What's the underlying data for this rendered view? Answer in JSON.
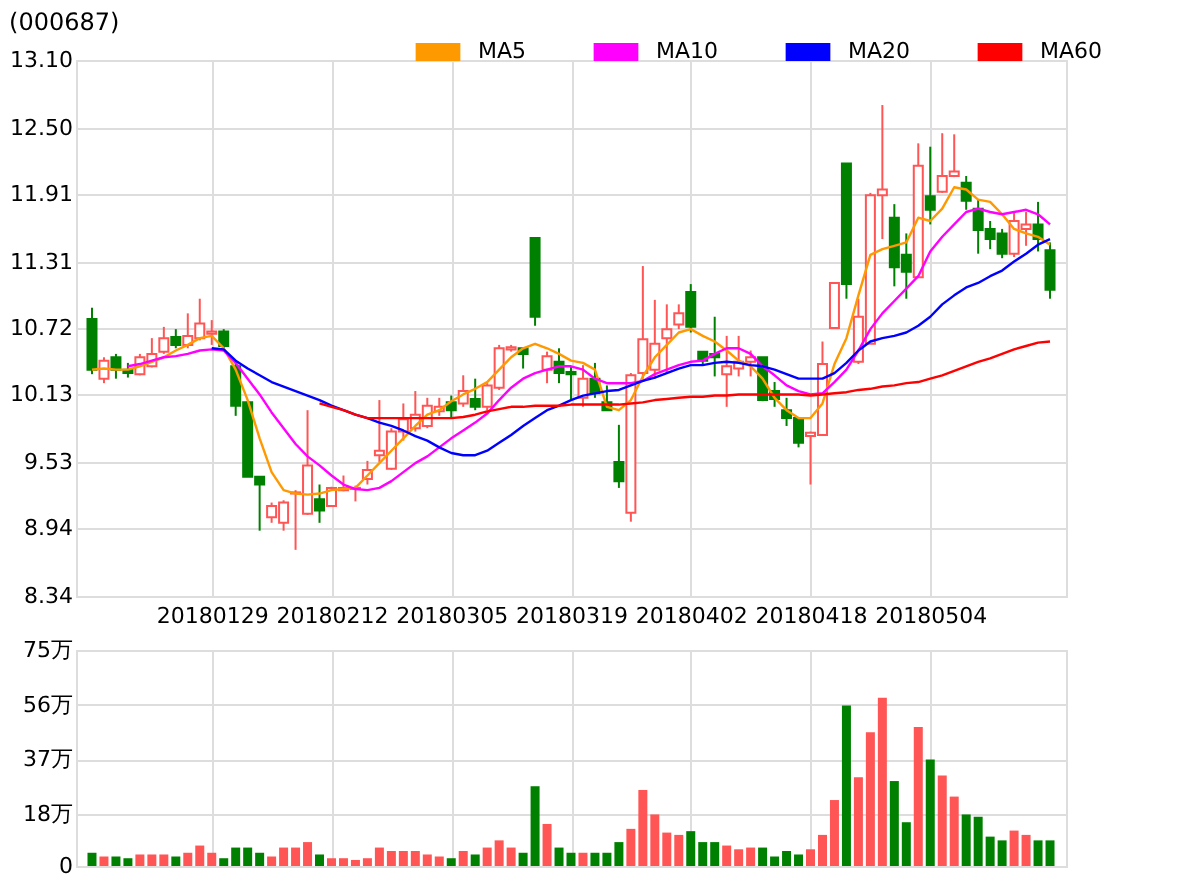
{
  "chart_data": [
    {
      "type": "candlestick",
      "title": "(000687)",
      "legend": "top right",
      "grid": true,
      "categories": [
        null,
        null,
        null,
        null,
        null,
        null,
        null,
        null,
        null,
        null,
        "20180129",
        null,
        null,
        null,
        null,
        null,
        null,
        null,
        null,
        null,
        "20180212",
        null,
        null,
        null,
        null,
        null,
        null,
        null,
        null,
        null,
        "20180305",
        null,
        null,
        null,
        null,
        null,
        null,
        null,
        null,
        null,
        "20180319",
        null,
        null,
        null,
        null,
        null,
        null,
        null,
        null,
        null,
        "20180402",
        null,
        null,
        null,
        null,
        null,
        null,
        null,
        null,
        null,
        "20180418",
        null,
        null,
        null,
        null,
        null,
        null,
        null,
        null,
        null,
        "20180504",
        null,
        null,
        null,
        null,
        null,
        null,
        null,
        null,
        null,
        null
      ],
      "ohlc": [
        [
          10.8,
          10.9,
          10.31,
          10.35
        ],
        [
          10.27,
          10.46,
          10.23,
          10.43
        ],
        [
          10.46,
          10.49,
          10.27,
          10.35
        ],
        [
          10.35,
          10.41,
          10.28,
          10.32
        ],
        [
          10.31,
          10.49,
          10.3,
          10.46
        ],
        [
          10.38,
          10.63,
          10.37,
          10.49
        ],
        [
          10.51,
          10.73,
          10.49,
          10.63
        ],
        [
          10.64,
          10.71,
          10.54,
          10.57
        ],
        [
          10.57,
          10.85,
          10.54,
          10.65
        ],
        [
          10.63,
          10.98,
          10.61,
          10.76
        ],
        [
          10.67,
          10.79,
          10.57,
          10.69
        ],
        [
          10.69,
          10.71,
          10.54,
          10.56
        ],
        [
          10.38,
          10.41,
          9.94,
          10.03
        ],
        [
          10.06,
          10.07,
          9.4,
          9.4
        ],
        [
          9.4,
          9.4,
          8.92,
          9.33
        ],
        [
          9.04,
          9.17,
          8.99,
          9.14
        ],
        [
          8.99,
          9.19,
          8.92,
          9.17
        ],
        [
          9.25,
          9.28,
          8.75,
          9.26
        ],
        [
          9.07,
          9.99,
          9.06,
          9.5
        ],
        [
          9.2,
          9.33,
          8.99,
          9.1
        ],
        [
          9.14,
          9.31,
          9.14,
          9.3
        ],
        [
          9.28,
          9.41,
          9.27,
          9.3
        ],
        [
          9.29,
          9.32,
          9.18,
          9.3
        ],
        [
          9.38,
          9.54,
          9.33,
          9.46
        ],
        [
          9.59,
          10.08,
          9.53,
          9.63
        ],
        [
          9.47,
          9.83,
          9.46,
          9.8
        ],
        [
          9.8,
          10.05,
          9.72,
          9.91
        ],
        [
          9.83,
          10.16,
          9.8,
          9.95
        ],
        [
          9.85,
          10.1,
          9.83,
          10.03
        ],
        [
          9.98,
          10.1,
          9.94,
          10.02
        ],
        [
          10.06,
          10.12,
          9.92,
          9.99
        ],
        [
          10.05,
          10.3,
          10.02,
          10.16
        ],
        [
          10.09,
          10.27,
          9.99,
          10.02
        ],
        [
          10.02,
          10.23,
          9.99,
          10.21
        ],
        [
          10.19,
          10.57,
          10.17,
          10.54
        ],
        [
          10.53,
          10.57,
          10.51,
          10.55
        ],
        [
          10.54,
          10.54,
          10.36,
          10.49
        ],
        [
          11.52,
          11.52,
          10.74,
          10.82
        ],
        [
          10.35,
          10.51,
          10.23,
          10.47
        ],
        [
          10.42,
          10.54,
          10.23,
          10.32
        ],
        [
          10.33,
          10.38,
          10.09,
          10.31
        ],
        [
          10.1,
          10.39,
          10.02,
          10.27
        ],
        [
          10.27,
          10.41,
          10.1,
          10.14
        ],
        [
          10.06,
          10.21,
          9.99,
          9.99
        ],
        [
          9.53,
          9.86,
          9.3,
          9.36
        ],
        [
          9.08,
          10.32,
          9.0,
          10.3
        ],
        [
          10.32,
          11.27,
          10.27,
          10.62
        ],
        [
          10.35,
          10.97,
          10.27,
          10.58
        ],
        [
          10.63,
          10.93,
          10.32,
          10.71
        ],
        [
          10.75,
          10.93,
          10.71,
          10.85
        ],
        [
          11.04,
          11.11,
          10.68,
          10.73
        ],
        [
          10.51,
          10.51,
          10.4,
          10.43
        ],
        [
          10.49,
          10.82,
          10.29,
          10.46
        ],
        [
          10.31,
          10.65,
          10.02,
          10.38
        ],
        [
          10.36,
          10.65,
          10.29,
          10.42
        ],
        [
          10.42,
          10.52,
          10.29,
          10.46
        ],
        [
          10.46,
          10.46,
          10.07,
          10.08
        ],
        [
          10.16,
          10.24,
          10.02,
          10.09
        ],
        [
          9.99,
          10.1,
          9.85,
          9.92
        ],
        [
          9.92,
          9.92,
          9.66,
          9.7
        ],
        [
          9.76,
          9.8,
          9.33,
          9.79
        ],
        [
          9.77,
          10.6,
          9.77,
          10.4
        ],
        [
          10.72,
          11.12,
          10.72,
          11.12
        ],
        [
          12.18,
          12.18,
          10.98,
          11.11
        ],
        [
          10.42,
          10.98,
          10.4,
          10.82
        ],
        [
          10.58,
          11.92,
          10.58,
          11.9
        ],
        [
          11.9,
          12.7,
          11.51,
          11.95
        ],
        [
          11.7,
          11.82,
          11.09,
          11.26
        ],
        [
          11.37,
          11.56,
          10.98,
          11.22
        ],
        [
          11.17,
          12.36,
          11.17,
          12.16
        ],
        [
          11.89,
          12.33,
          11.64,
          11.77
        ],
        [
          11.93,
          12.45,
          11.92,
          12.07
        ],
        [
          12.07,
          12.44,
          12.06,
          12.11
        ],
        [
          12.01,
          12.07,
          11.77,
          11.85
        ],
        [
          11.78,
          11.86,
          11.38,
          11.59
        ],
        [
          11.6,
          11.67,
          11.42,
          11.51
        ],
        [
          11.56,
          11.6,
          11.34,
          11.38
        ],
        [
          11.38,
          11.75,
          11.35,
          11.67
        ],
        [
          11.6,
          11.75,
          11.45,
          11.64
        ],
        [
          11.64,
          11.84,
          11.4,
          11.51
        ],
        [
          11.41,
          11.48,
          10.98,
          11.06
        ]
      ],
      "colors": [
        "#008000",
        "#ff5555",
        "#008000",
        "#008000",
        "#ff5555",
        "#ff5555",
        "#ff5555",
        "#008000",
        "#ff5555",
        "#ff5555",
        "#ff5555",
        "#008000",
        "#008000",
        "#008000",
        "#008000",
        "#ff5555",
        "#ff5555",
        "#ff5555",
        "#ff5555",
        "#008000",
        "#ff5555",
        "#ff5555",
        "#ff5555",
        "#ff5555",
        "#ff5555",
        "#ff5555",
        "#ff5555",
        "#ff5555",
        "#ff5555",
        "#ff5555",
        "#008000",
        "#ff5555",
        "#008000",
        "#ff5555",
        "#ff5555",
        "#ff5555",
        "#008000",
        "#008000",
        "#ff5555",
        "#008000",
        "#008000",
        "#ff5555",
        "#008000",
        "#008000",
        "#008000",
        "#ff5555",
        "#ff5555",
        "#ff5555",
        "#ff5555",
        "#ff5555",
        "#008000",
        "#008000",
        "#008000",
        "#ff5555",
        "#ff5555",
        "#ff5555",
        "#008000",
        "#008000",
        "#008000",
        "#008000",
        "#ff5555",
        "#ff5555",
        "#ff5555",
        "#008000",
        "#ff5555",
        "#ff5555",
        "#ff5555",
        "#008000",
        "#008000",
        "#ff5555",
        "#008000",
        "#ff5555",
        "#ff5555",
        "#008000",
        "#008000",
        "#008000",
        "#008000",
        "#ff5555",
        "#ff5555",
        "#008000",
        "#008000"
      ],
      "series": [
        {
          "name": "MA5",
          "type": "line",
          "color": "#ff9900",
          "values": [
            10.35,
            10.36,
            10.35,
            10.35,
            10.38,
            10.42,
            10.46,
            10.52,
            10.57,
            10.63,
            10.65,
            10.54,
            10.35,
            10.08,
            9.74,
            9.44,
            9.28,
            9.25,
            9.24,
            9.25,
            9.28,
            9.29,
            9.3,
            9.41,
            9.52,
            9.63,
            9.74,
            9.85,
            9.95,
            9.99,
            10.07,
            10.13,
            10.18,
            10.24,
            10.35,
            10.46,
            10.54,
            10.58,
            10.54,
            10.49,
            10.43,
            10.41,
            10.35,
            10.02,
            9.99,
            10.08,
            10.29,
            10.46,
            10.57,
            10.68,
            10.71,
            10.65,
            10.6,
            10.52,
            10.43,
            10.38,
            10.27,
            10.1,
            9.99,
            9.92,
            9.92,
            10.05,
            10.4,
            10.63,
            11.01,
            11.37,
            11.42,
            11.45,
            11.48,
            11.7,
            11.67,
            11.78,
            11.97,
            11.95,
            11.86,
            11.84,
            11.73,
            11.6,
            11.56,
            11.53,
            11.46
          ]
        },
        {
          "name": "MA10",
          "type": "line",
          "color": "#ff00ff",
          "values": [
            null,
            null,
            null,
            10.38,
            10.4,
            10.43,
            10.46,
            10.47,
            10.49,
            10.52,
            10.53,
            10.52,
            10.41,
            10.27,
            10.13,
            9.97,
            9.83,
            9.69,
            9.58,
            9.5,
            9.41,
            9.33,
            9.29,
            9.28,
            9.3,
            9.36,
            9.44,
            9.52,
            9.58,
            9.66,
            9.74,
            9.81,
            9.88,
            9.96,
            10.08,
            10.19,
            10.27,
            10.32,
            10.35,
            10.38,
            10.38,
            10.35,
            10.27,
            10.23,
            10.23,
            10.23,
            10.25,
            10.31,
            10.35,
            10.39,
            10.42,
            10.43,
            10.49,
            10.54,
            10.54,
            10.49,
            10.38,
            10.3,
            10.21,
            10.16,
            10.13,
            10.14,
            10.24,
            10.35,
            10.52,
            10.71,
            10.85,
            10.96,
            11.07,
            11.18,
            11.4,
            11.53,
            11.64,
            11.75,
            11.78,
            11.75,
            11.73,
            11.75,
            11.77,
            11.73,
            11.64
          ]
        },
        {
          "name": "MA20",
          "type": "line",
          "color": "#0000ff",
          "values": [
            null,
            null,
            null,
            null,
            null,
            null,
            null,
            null,
            null,
            null,
            10.54,
            10.53,
            10.43,
            10.36,
            10.3,
            10.24,
            10.2,
            10.16,
            10.12,
            10.08,
            10.03,
            9.99,
            9.95,
            9.92,
            9.88,
            9.85,
            9.81,
            9.76,
            9.72,
            9.66,
            9.61,
            9.59,
            9.59,
            9.63,
            9.7,
            9.77,
            9.85,
            9.92,
            9.99,
            10.03,
            10.08,
            10.12,
            10.14,
            10.16,
            10.17,
            10.21,
            10.25,
            10.28,
            10.32,
            10.36,
            10.39,
            10.39,
            10.41,
            10.42,
            10.41,
            10.39,
            10.38,
            10.35,
            10.31,
            10.27,
            10.27,
            10.27,
            10.32,
            10.41,
            10.52,
            10.6,
            10.63,
            10.65,
            10.68,
            10.74,
            10.82,
            10.93,
            11.01,
            11.08,
            11.12,
            11.18,
            11.23,
            11.31,
            11.38,
            11.46,
            11.51
          ]
        },
        {
          "name": "MA60",
          "type": "line",
          "color": "#ff0000",
          "values": [
            null,
            null,
            null,
            null,
            null,
            null,
            null,
            null,
            null,
            null,
            null,
            null,
            null,
            null,
            null,
            null,
            null,
            null,
            null,
            10.05,
            10.02,
            9.99,
            9.95,
            9.92,
            9.92,
            9.92,
            9.92,
            9.92,
            9.92,
            9.92,
            9.92,
            9.93,
            9.95,
            9.98,
            10.0,
            10.02,
            10.02,
            10.03,
            10.03,
            10.03,
            10.04,
            10.04,
            10.04,
            10.04,
            10.04,
            10.05,
            10.06,
            10.08,
            10.09,
            10.1,
            10.11,
            10.11,
            10.12,
            10.12,
            10.13,
            10.13,
            10.13,
            10.13,
            10.13,
            10.13,
            10.12,
            10.13,
            10.14,
            10.15,
            10.17,
            10.18,
            10.2,
            10.21,
            10.23,
            10.24,
            10.27,
            10.3,
            10.34,
            10.38,
            10.42,
            10.45,
            10.49,
            10.53,
            10.56,
            10.59,
            10.6
          ]
        }
      ],
      "ylim": [
        8.34,
        13.1
      ],
      "yticks": [
        8.34,
        8.94,
        9.53,
        10.13,
        10.72,
        11.31,
        11.91,
        {
          "value": 12.5,
          "label": "12.50"
        },
        {
          "value": 13.1,
          "label": "13.10"
        }
      ]
    },
    {
      "type": "bar",
      "grid": true,
      "tick_labels": "y",
      "categories": [
        null,
        null,
        null,
        null,
        null,
        null,
        null,
        null,
        null,
        null,
        "20180129",
        null,
        null,
        null,
        null,
        null,
        null,
        null,
        null,
        null,
        "20180212",
        null,
        null,
        null,
        null,
        null,
        null,
        null,
        null,
        null,
        "20180305",
        null,
        null,
        null,
        null,
        null,
        null,
        null,
        null,
        null,
        "20180319",
        null,
        null,
        null,
        null,
        null,
        null,
        null,
        null,
        null,
        "20180402",
        null,
        null,
        null,
        null,
        null,
        null,
        null,
        null,
        null,
        "20180418",
        null,
        null,
        null,
        null,
        null,
        null,
        null,
        null,
        null,
        "20180504",
        null,
        null,
        null,
        null,
        null,
        null,
        null,
        null,
        null,
        null
      ],
      "values": [
        4.6,
        3.3,
        3.3,
        2.7,
        4.0,
        4.0,
        4.0,
        3.3,
        4.6,
        7.1,
        4.6,
        2.7,
        6.4,
        6.4,
        4.6,
        3.3,
        6.4,
        6.4,
        8.3,
        4.0,
        2.7,
        2.7,
        2.1,
        2.7,
        6.4,
        5.2,
        5.2,
        5.2,
        4.0,
        3.3,
        2.7,
        5.2,
        4.0,
        6.4,
        8.9,
        6.4,
        4.6,
        27.7,
        14.6,
        6.4,
        4.6,
        4.6,
        4.6,
        4.6,
        8.3,
        12.9,
        26.4,
        17.9,
        11.6,
        10.8,
        12.1,
        8.3,
        8.3,
        7.1,
        5.8,
        6.4,
        6.4,
        3.3,
        5.2,
        4.0,
        5.8,
        10.8,
        22.9,
        55.7,
        30.8,
        46.4,
        58.4,
        29.5,
        15.2,
        48.3,
        37.0,
        31.4,
        24.1,
        17.9,
        17.1,
        10.2,
        8.9,
        12.3,
        10.8,
        8.9,
        8.9
      ],
      "colors": [
        "#008000",
        "#ff5555",
        "#008000",
        "#008000",
        "#ff5555",
        "#ff5555",
        "#ff5555",
        "#008000",
        "#ff5555",
        "#ff5555",
        "#ff5555",
        "#008000",
        "#008000",
        "#008000",
        "#008000",
        "#ff5555",
        "#ff5555",
        "#ff5555",
        "#ff5555",
        "#008000",
        "#ff5555",
        "#ff5555",
        "#ff5555",
        "#ff5555",
        "#ff5555",
        "#ff5555",
        "#ff5555",
        "#ff5555",
        "#ff5555",
        "#ff5555",
        "#008000",
        "#ff5555",
        "#008000",
        "#ff5555",
        "#ff5555",
        "#ff5555",
        "#008000",
        "#008000",
        "#ff5555",
        "#008000",
        "#008000",
        "#ff5555",
        "#008000",
        "#008000",
        "#008000",
        "#ff5555",
        "#ff5555",
        "#ff5555",
        "#ff5555",
        "#ff5555",
        "#008000",
        "#008000",
        "#008000",
        "#ff5555",
        "#ff5555",
        "#ff5555",
        "#008000",
        "#008000",
        "#008000",
        "#008000",
        "#ff5555",
        "#ff5555",
        "#ff5555",
        "#008000",
        "#ff5555",
        "#ff5555",
        "#ff5555",
        "#008000",
        "#008000",
        "#ff5555",
        "#008000",
        "#ff5555",
        "#ff5555",
        "#008000",
        "#008000",
        "#008000",
        "#008000",
        "#ff5555",
        "#ff5555",
        "#008000",
        "#008000"
      ],
      "ylim": [
        0,
        75
      ],
      "yticks": [
        0,
        {
          "value": 18,
          "label": "18万"
        },
        {
          "value": 37,
          "label": "37万"
        },
        {
          "value": 56,
          "label": "56万"
        },
        {
          "value": 75,
          "label": "75万"
        }
      ]
    }
  ]
}
